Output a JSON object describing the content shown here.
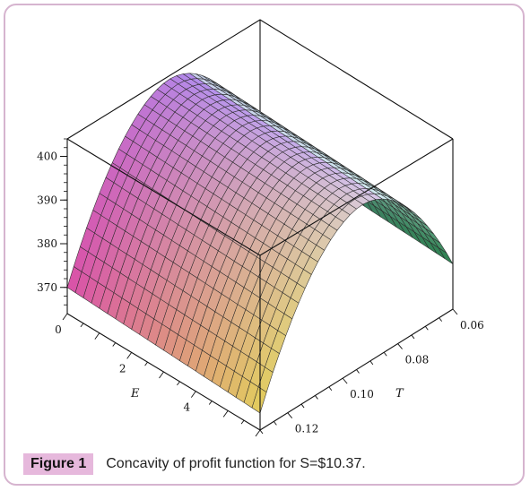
{
  "figure": {
    "label": "Figure 1",
    "caption": "Concavity of profit function for S=$10.37."
  },
  "chart_data": {
    "type": "surface3d",
    "title": "",
    "xlabel": "E",
    "ylabel": "T",
    "zlabel": "",
    "xlim": [
      0,
      6
    ],
    "ylim": [
      0.06,
      0.13
    ],
    "zlim": [
      364,
      404
    ],
    "x_ticks": [
      "0",
      "2",
      "4"
    ],
    "y_ticks": [
      "0.06",
      "0.08",
      "0.10",
      "0.12"
    ],
    "z_ticks": [
      "370",
      "380",
      "390",
      "400"
    ],
    "surface": {
      "E": [
        0,
        1.5,
        3,
        4.5,
        6
      ],
      "T": [
        0.06,
        0.07,
        0.08,
        0.09,
        0.1,
        0.11,
        0.12,
        0.13
      ],
      "profit_at_T_min": 370,
      "profit_peak": 403
    },
    "colormap": [
      "#2f7d4a",
      "#bfe6ee",
      "#a886d6",
      "#d04fa8",
      "#e2c25b"
    ]
  }
}
